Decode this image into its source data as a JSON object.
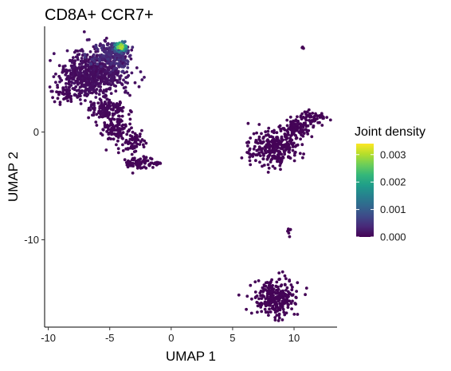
{
  "chart_data": {
    "type": "scatter",
    "title": "CD8A+ CCR7+",
    "xlabel": "UMAP 1",
    "ylabel": "UMAP 2",
    "xlim": [
      -10.3,
      13.5
    ],
    "ylim": [
      -18.1,
      9.8
    ],
    "xticks": [
      -10,
      -5,
      0,
      5,
      10
    ],
    "yticks": [
      0,
      -10
    ],
    "grid": false,
    "legend": {
      "title": "Joint density",
      "position": "right",
      "range": [
        0,
        0.0034
      ],
      "ticks": [
        0.0,
        0.001,
        0.002,
        0.003
      ],
      "tick_labels": [
        "0.000",
        "0.001",
        "0.002",
        "0.003"
      ]
    },
    "colormap": [
      "#440154",
      "#482878",
      "#3e4a89",
      "#31688e",
      "#26828e",
      "#1f9e89",
      "#35b779",
      "#6ece58",
      "#b5de2b",
      "#fde725"
    ],
    "clusters": [
      {
        "region": "upper-left",
        "center": [
          -5.8,
          5.8
        ],
        "spread": [
          1.3,
          1.0
        ],
        "n": 420,
        "density": 0.00018
      },
      {
        "region": "upper-left",
        "center": [
          -7.2,
          4.8
        ],
        "spread": [
          1.0,
          0.9
        ],
        "n": 260,
        "density": 0.00012
      },
      {
        "region": "upper-left",
        "center": [
          -4.8,
          7.1
        ],
        "spread": [
          0.8,
          0.6
        ],
        "n": 180,
        "density": 0.00045
      },
      {
        "region": "upper-left",
        "center": [
          -8.8,
          3.4
        ],
        "spread": [
          0.4,
          0.4
        ],
        "n": 30,
        "density": 5e-05
      },
      {
        "region": "upper-left-hotspot",
        "center": [
          -4.1,
          7.9
        ],
        "spread": [
          0.35,
          0.3
        ],
        "n": 60,
        "density": 0.0032
      },
      {
        "region": "upper-left",
        "center": [
          -5.1,
          2.2
        ],
        "spread": [
          0.7,
          0.5
        ],
        "n": 120,
        "density": 8e-05
      },
      {
        "region": "upper-left",
        "center": [
          -4.5,
          0.2
        ],
        "spread": [
          0.7,
          0.7
        ],
        "n": 110,
        "density": 5e-05
      },
      {
        "region": "upper-left",
        "center": [
          -3.1,
          -1.0
        ],
        "spread": [
          0.4,
          0.5
        ],
        "n": 55,
        "density": 4e-05
      },
      {
        "region": "upper-left",
        "center": [
          -2.6,
          -2.9
        ],
        "spread": [
          0.6,
          0.3
        ],
        "n": 70,
        "density": 4e-05
      },
      {
        "region": "upper-left",
        "center": [
          -1.3,
          -3.0
        ],
        "spread": [
          0.3,
          0.1
        ],
        "n": 10,
        "density": 3e-05
      },
      {
        "region": "right",
        "center": [
          8.3,
          -1.5
        ],
        "spread": [
          1.0,
          0.8
        ],
        "n": 280,
        "density": 3e-05
      },
      {
        "region": "right",
        "center": [
          10.2,
          0.4
        ],
        "spread": [
          0.7,
          0.5
        ],
        "n": 110,
        "density": 3e-05
      },
      {
        "region": "right",
        "center": [
          11.6,
          1.4
        ],
        "spread": [
          0.6,
          0.3
        ],
        "n": 50,
        "density": 3e-05
      },
      {
        "region": "right-small",
        "center": [
          10.7,
          7.8
        ],
        "spread": [
          0.08,
          0.08
        ],
        "n": 3,
        "density": 2e-05
      },
      {
        "region": "right-small",
        "center": [
          9.6,
          -9.3
        ],
        "spread": [
          0.1,
          0.3
        ],
        "n": 6,
        "density": 2e-05
      },
      {
        "region": "bottom",
        "center": [
          8.4,
          -15.5
        ],
        "spread": [
          0.9,
          0.8
        ],
        "n": 260,
        "density": 3e-05
      },
      {
        "region": "bottom",
        "center": [
          8.1,
          -14.0
        ],
        "spread": [
          0.1,
          0.2
        ],
        "n": 6,
        "density": 2e-05
      }
    ]
  }
}
